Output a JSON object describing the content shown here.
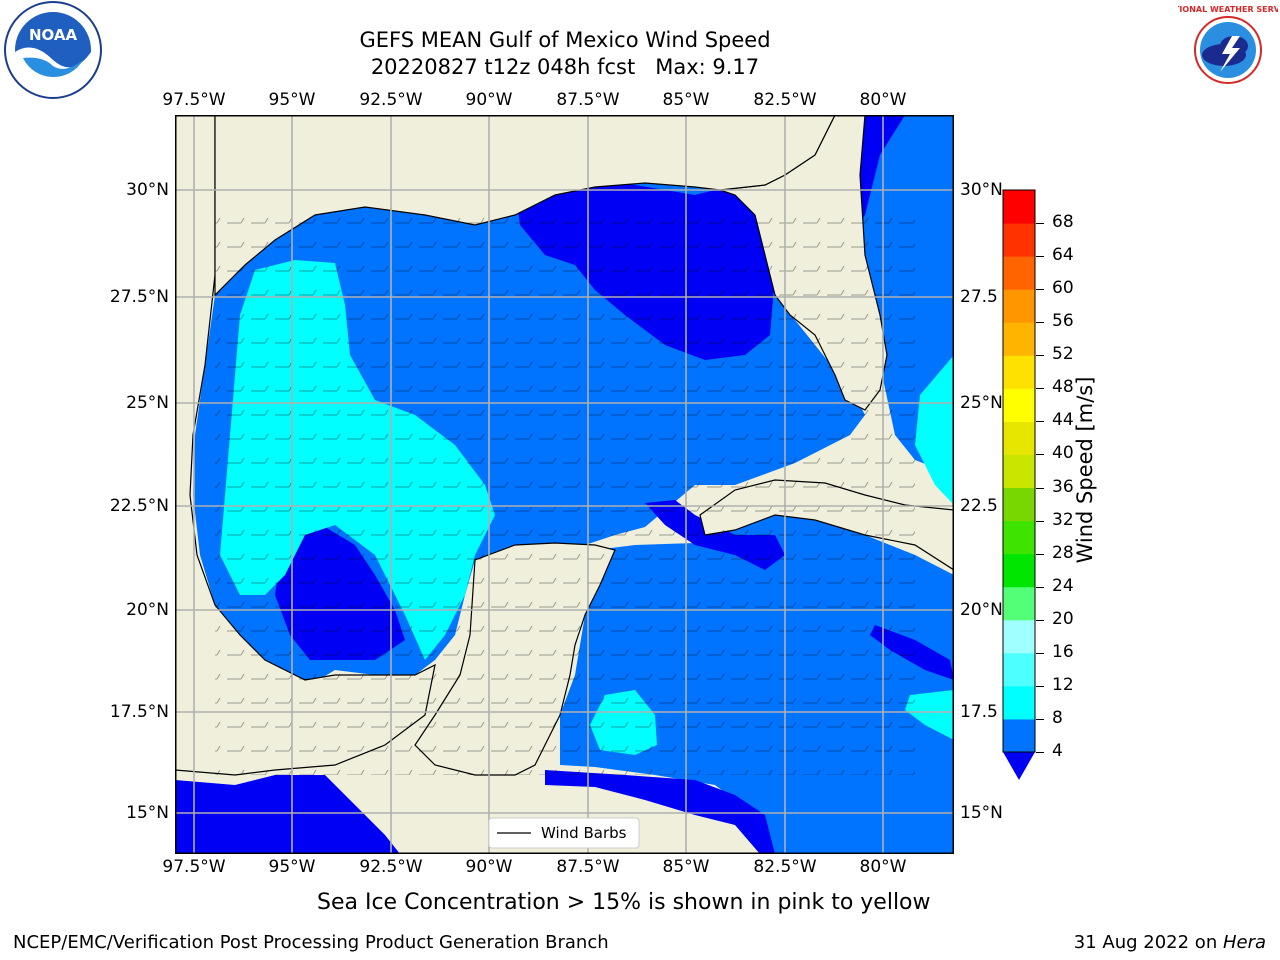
{
  "title": {
    "line1": "GEFS MEAN Gulf of Mexico Wind Speed",
    "line2": "20220827 t12z 048h fcst   Max: 9.17"
  },
  "map": {
    "lon_ticks": [
      "97.5°W",
      "95°W",
      "92.5°W",
      "90°W",
      "87.5°W",
      "85°W",
      "82.5°W",
      "80°W"
    ],
    "lat_ticks_left": [
      "30°N",
      "27.5°N",
      "25°N",
      "22.5°N",
      "20°N",
      "17.5°N",
      "15°N"
    ],
    "lat_ticks_right": [
      "30°N",
      "27.5",
      "25°N",
      "22.5",
      "20°N",
      "17.5",
      "15°N"
    ],
    "legend_label": "Wind Barbs",
    "colors": {
      "land": "#efefdc",
      "band_4_8": "#0073ff",
      "band_lt4": "#0000f5",
      "band_8_12": "#00ffff",
      "grid": "#b0b0b0"
    }
  },
  "colorbar": {
    "title": "Wind Speed [m/s]",
    "levels": [
      "4",
      "8",
      "12",
      "16",
      "20",
      "24",
      "28",
      "32",
      "36",
      "40",
      "44",
      "48",
      "52",
      "56",
      "60",
      "64",
      "68"
    ],
    "colors": [
      "#0073ff",
      "#00ffff",
      "#4dffff",
      "#a0ffff",
      "#54ff78",
      "#00e600",
      "#3ee300",
      "#78d700",
      "#c8e600",
      "#e6e600",
      "#ffff00",
      "#ffe100",
      "#ffb400",
      "#ff9600",
      "#ff6400",
      "#ff3200",
      "#ff0000"
    ],
    "extend_color": "#0000f5"
  },
  "logos": {
    "noaa": "NOAA",
    "nws_text": "NATIONAL WEATHER SERVICE"
  },
  "footer": {
    "note": "Sea Ice Concentration > 15% is shown in pink to yellow",
    "credit_left": "NCEP/EMC/Verification Post Processing Product Generation Branch",
    "credit_date": "31 Aug 2022 on ",
    "credit_host": "Hera"
  }
}
